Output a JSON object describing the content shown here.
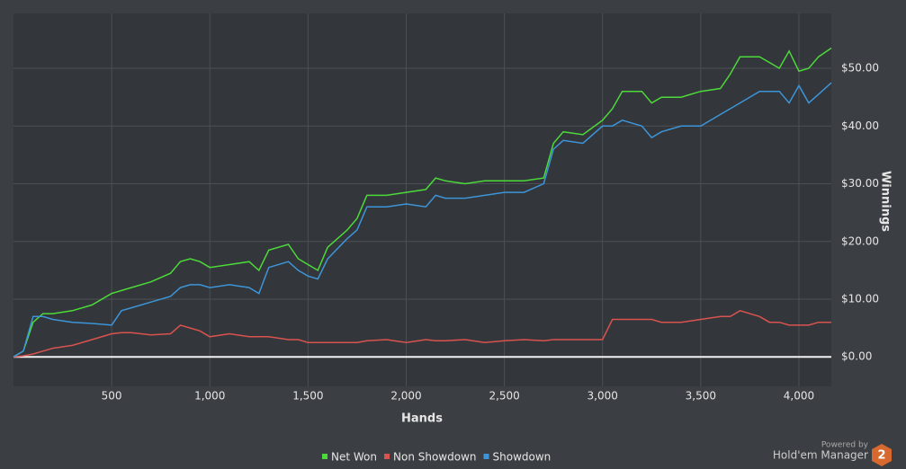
{
  "chart_data": {
    "type": "line",
    "x_label": "Hands",
    "y_label": "Winnings",
    "x": [
      0,
      50,
      100,
      150,
      200,
      300,
      400,
      500,
      550,
      600,
      700,
      800,
      850,
      900,
      950,
      1000,
      1100,
      1200,
      1250,
      1300,
      1400,
      1450,
      1500,
      1550,
      1600,
      1700,
      1750,
      1800,
      1900,
      2000,
      2100,
      2150,
      2200,
      2300,
      2400,
      2500,
      2600,
      2700,
      2750,
      2800,
      2900,
      3000,
      3050,
      3100,
      3200,
      3250,
      3300,
      3400,
      3500,
      3600,
      3650,
      3700,
      3800,
      3850,
      3900,
      3950,
      4000,
      4050,
      4100,
      4165
    ],
    "series": [
      {
        "name": "Net Won",
        "color": "#4cd93a",
        "values": [
          0,
          1,
          6,
          7.5,
          7.5,
          8,
          9,
          11,
          11.5,
          12,
          13,
          14.5,
          16.5,
          17,
          16.5,
          15.5,
          16,
          16.5,
          15,
          18.5,
          19.5,
          17,
          16,
          15,
          19,
          22,
          24,
          28,
          28,
          28.5,
          29,
          31,
          30.5,
          30,
          30.5,
          30.5,
          30.5,
          31,
          37,
          39,
          38.5,
          41,
          43,
          46,
          46,
          44,
          45,
          45,
          46,
          46.5,
          49,
          52,
          52,
          51,
          50,
          53,
          49.5,
          50,
          52,
          53.5
        ]
      },
      {
        "name": "Non Showdown",
        "color": "#d9534f",
        "values": [
          0,
          0.2,
          0.5,
          1,
          1.5,
          2,
          3,
          4,
          4.2,
          4.2,
          3.8,
          4,
          5.5,
          5,
          4.5,
          3.5,
          4,
          3.5,
          3.5,
          3.5,
          3,
          3,
          2.5,
          2.5,
          2.5,
          2.5,
          2.5,
          2.8,
          3,
          2.5,
          3,
          2.8,
          2.8,
          3,
          2.5,
          2.8,
          3,
          2.8,
          3,
          3,
          3,
          3,
          6.5,
          6.5,
          6.5,
          6.5,
          6,
          6,
          6.5,
          7,
          7,
          8,
          7,
          6,
          6,
          5.5,
          5.5,
          5.5,
          6,
          6
        ]
      },
      {
        "name": "Showdown",
        "color": "#3d95d8",
        "values": [
          0,
          1,
          7,
          7,
          6.5,
          6,
          5.8,
          5.5,
          8,
          8.5,
          9.5,
          10.5,
          12,
          12.5,
          12.5,
          12,
          12.5,
          12,
          11,
          15.5,
          16.5,
          15,
          14,
          13.5,
          17,
          20.5,
          22,
          26,
          26,
          26.5,
          26,
          28,
          27.5,
          27.5,
          28,
          28.5,
          28.5,
          30,
          36,
          37.5,
          37,
          40,
          40,
          41,
          40,
          38,
          39,
          40,
          40,
          42,
          43,
          44,
          46,
          46,
          46,
          44,
          47,
          44,
          45.5,
          47.5
        ]
      }
    ],
    "xlim": [
      0,
      4165
    ],
    "ylim": [
      -5.1,
      59.5
    ],
    "xticks": [
      500,
      {
        "value": 1000,
        "label": "1,000"
      },
      {
        "value": 1500,
        "label": "1,500"
      },
      {
        "value": 2000,
        "label": "2,000"
      },
      {
        "value": 2500,
        "label": "2,500"
      },
      {
        "value": 3000,
        "label": "3,000"
      },
      {
        "value": 3500,
        "label": "3,500"
      },
      {
        "value": 4000,
        "label": "4,000"
      }
    ],
    "yticks": [
      {
        "value": 0,
        "label": "$0.00"
      },
      {
        "value": 10,
        "label": "$10.00"
      },
      {
        "value": 20,
        "label": "$20.00"
      },
      {
        "value": 30,
        "label": "$30.00"
      },
      {
        "value": 40,
        "label": "$40.00"
      },
      {
        "value": 50,
        "label": "$50.00"
      }
    ],
    "grid": true,
    "legend": "bottom"
  },
  "branding": {
    "powered_by": "Powered by",
    "product": "Hold'em Manager",
    "badge": "2"
  }
}
